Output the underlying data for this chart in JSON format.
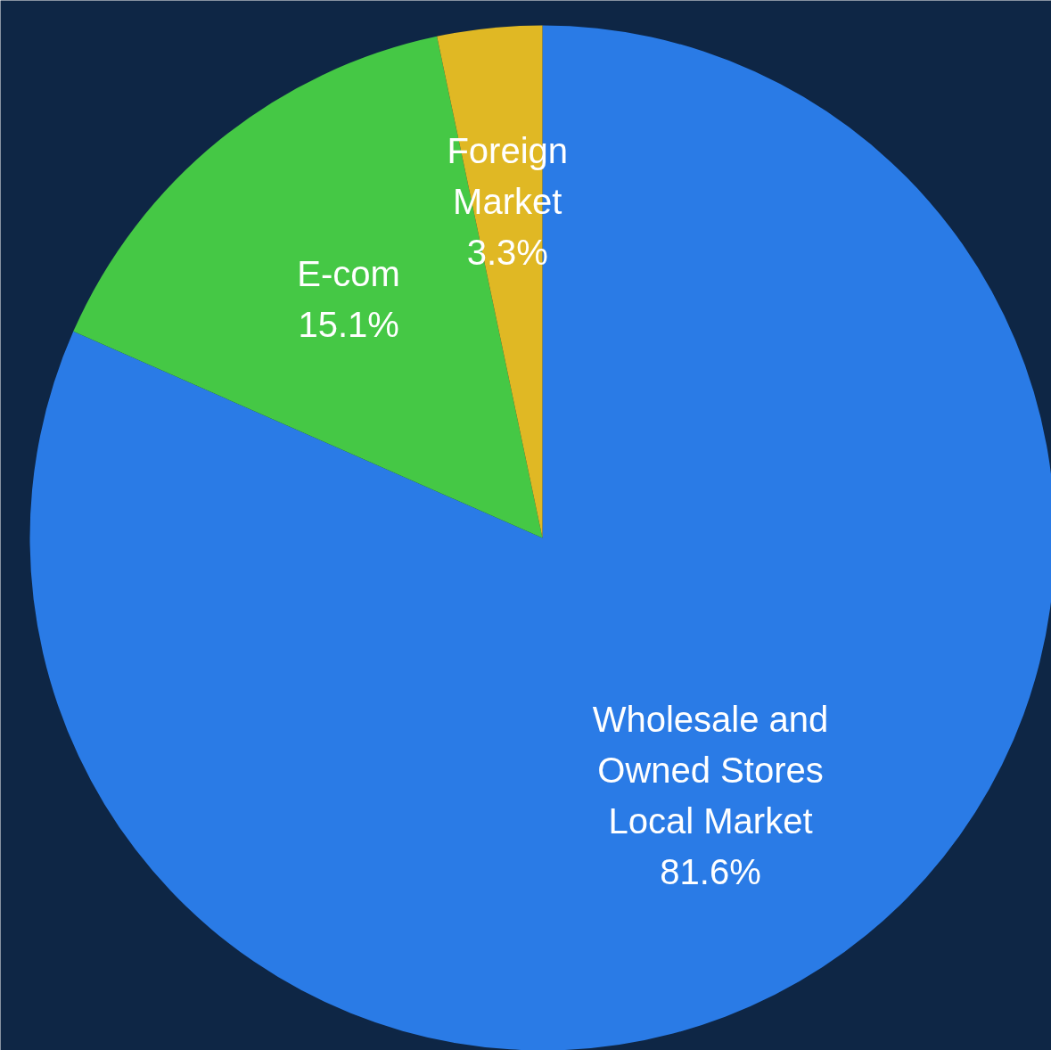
{
  "chart_data": {
    "type": "pie",
    "categories": [
      "Wholesale and\nOwned Stores\nLocal Market",
      "E-com",
      "Foreign\nMarket"
    ],
    "values": [
      81.6,
      15.1,
      3.3
    ],
    "colors": [
      "#2a7be6",
      "#45c845",
      "#e0b824"
    ],
    "value_labels": [
      "81.6%",
      "15.1%",
      "3.3%"
    ],
    "legend": false
  }
}
